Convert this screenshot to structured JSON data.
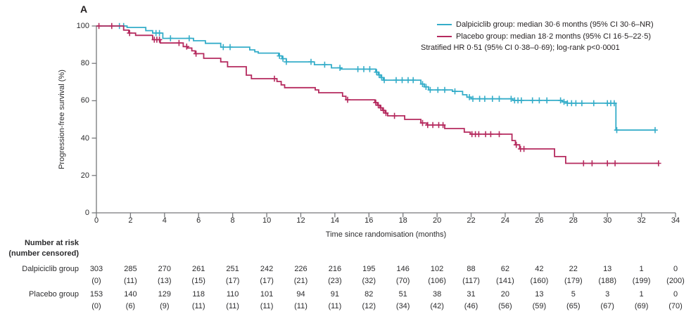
{
  "panel_label": "A",
  "colors": {
    "dalpiciclib": "#35adc9",
    "placebo": "#b52a5e",
    "axis": "#77787b",
    "text": "#2b2b2d"
  },
  "legend": {
    "items": [
      {
        "name": "dalpiciclib",
        "label": "Dalpiciclib group: median 30·6 months (95% CI 30·6–NR)"
      },
      {
        "name": "placebo",
        "label": "Placebo group: median 18·2 months (95% CI 16·5–22·5)"
      }
    ],
    "note": "Stratified HR 0·51 (95% CI 0·38–0·69); log-rank p<0·0001"
  },
  "chart_data": {
    "type": "line",
    "subtype": "kaplan-meier-step",
    "xlabel": "Time since randomisation (months)",
    "ylabel": "Progression-free survival (%)",
    "xlim": [
      0,
      34
    ],
    "ylim": [
      0,
      100
    ],
    "xticks": [
      0,
      2,
      4,
      6,
      8,
      10,
      12,
      14,
      16,
      18,
      20,
      22,
      24,
      26,
      28,
      30,
      32,
      34
    ],
    "yticks": [
      0,
      20,
      40,
      60,
      80,
      100
    ],
    "grid": false,
    "legend_position": "top-right",
    "series": [
      {
        "name": "Dalpiciclib group",
        "color": "#35adc9",
        "steps": [
          [
            0,
            100
          ],
          [
            1.8,
            99.2
          ],
          [
            2.9,
            97.5
          ],
          [
            3.3,
            96.2
          ],
          [
            3.9,
            93.4
          ],
          [
            5.7,
            92.1
          ],
          [
            6.4,
            90.7
          ],
          [
            7.3,
            88.7
          ],
          [
            9.0,
            87.2
          ],
          [
            9.3,
            86.2
          ],
          [
            9.5,
            85.5
          ],
          [
            10.7,
            84.0
          ],
          [
            10.9,
            82.5
          ],
          [
            11.15,
            80.8
          ],
          [
            12.8,
            79.3
          ],
          [
            13.8,
            77.6
          ],
          [
            14.35,
            76.9
          ],
          [
            16.4,
            75.3
          ],
          [
            16.55,
            73.8
          ],
          [
            16.7,
            72.4
          ],
          [
            16.85,
            71.0
          ],
          [
            19.05,
            68.9
          ],
          [
            19.25,
            67.4
          ],
          [
            19.5,
            65.8
          ],
          [
            20.9,
            65.0
          ],
          [
            21.5,
            63.2
          ],
          [
            21.75,
            61.9
          ],
          [
            22.0,
            61.0
          ],
          [
            24.45,
            60.2
          ],
          [
            27.35,
            59.4
          ],
          [
            27.65,
            58.7
          ],
          [
            30.5,
            44.3
          ]
        ],
        "end_time": 32.85,
        "censor_times": [
          1.35,
          1.6,
          3.5,
          3.7,
          4.35,
          5.45,
          7.45,
          7.85,
          10.75,
          10.95,
          11.15,
          12.6,
          13.4,
          14.3,
          15.35,
          15.7,
          16.05,
          16.45,
          16.6,
          16.75,
          16.9,
          17.6,
          17.95,
          18.3,
          18.6,
          19.15,
          19.35,
          19.6,
          20.05,
          20.45,
          21.05,
          21.9,
          22.1,
          22.5,
          22.8,
          23.25,
          23.65,
          24.35,
          24.55,
          24.75,
          24.95,
          25.6,
          26.0,
          26.45,
          27.25,
          27.45,
          27.65,
          27.9,
          28.15,
          28.5,
          29.2,
          30.0,
          30.2,
          30.4,
          30.55,
          32.8
        ]
      },
      {
        "name": "Placebo group",
        "color": "#b52a5e",
        "steps": [
          [
            0,
            100
          ],
          [
            1.6,
            97.8
          ],
          [
            1.9,
            96.2
          ],
          [
            2.3,
            95.0
          ],
          [
            3.3,
            92.7
          ],
          [
            3.75,
            90.9
          ],
          [
            5.1,
            89.0
          ],
          [
            5.35,
            88.2
          ],
          [
            5.6,
            86.7
          ],
          [
            5.8,
            85.2
          ],
          [
            6.3,
            82.7
          ],
          [
            7.3,
            80.8
          ],
          [
            7.7,
            78.2
          ],
          [
            8.8,
            73.7
          ],
          [
            9.1,
            71.8
          ],
          [
            10.6,
            70.3
          ],
          [
            10.85,
            68.5
          ],
          [
            11.05,
            67.0
          ],
          [
            12.85,
            65.8
          ],
          [
            13.05,
            64.3
          ],
          [
            14.45,
            62.4
          ],
          [
            14.65,
            60.5
          ],
          [
            16.35,
            59.0
          ],
          [
            16.5,
            57.6
          ],
          [
            16.65,
            56.2
          ],
          [
            16.8,
            54.8
          ],
          [
            16.95,
            53.4
          ],
          [
            17.1,
            51.9
          ],
          [
            18.1,
            50.0
          ],
          [
            19.05,
            48.1
          ],
          [
            19.4,
            47.0
          ],
          [
            20.45,
            45.1
          ],
          [
            21.6,
            43.2
          ],
          [
            21.95,
            42.1
          ],
          [
            24.4,
            38.7
          ],
          [
            24.6,
            36.4
          ],
          [
            24.85,
            34.2
          ],
          [
            26.9,
            30.1
          ],
          [
            27.55,
            26.5
          ]
        ],
        "end_time": 33.05,
        "censor_times": [
          0.15,
          0.9,
          1.95,
          3.4,
          3.55,
          3.7,
          4.85,
          5.3,
          5.85,
          10.45,
          14.75,
          16.4,
          16.55,
          16.7,
          16.85,
          17.0,
          17.5,
          19.15,
          19.45,
          19.75,
          20.1,
          20.35,
          22.05,
          22.25,
          22.45,
          22.85,
          23.15,
          23.65,
          24.65,
          24.9,
          25.1,
          28.6,
          29.1,
          30.0,
          30.45,
          33.0
        ]
      }
    ]
  },
  "risk_table": {
    "header_line1": "Number at risk",
    "header_line2": "(number censored)",
    "timepoints": [
      0,
      2,
      4,
      6,
      8,
      10,
      12,
      14,
      16,
      18,
      20,
      22,
      24,
      26,
      28,
      30,
      32,
      34
    ],
    "rows": [
      {
        "label": "Dalpiciclib group",
        "at_risk": [
          303,
          285,
          270,
          261,
          251,
          242,
          226,
          216,
          195,
          146,
          102,
          88,
          62,
          42,
          22,
          13,
          1,
          0
        ],
        "censored": [
          0,
          11,
          13,
          15,
          17,
          17,
          21,
          23,
          32,
          70,
          106,
          117,
          141,
          160,
          179,
          188,
          199,
          200
        ]
      },
      {
        "label": "Placebo group",
        "at_risk": [
          153,
          140,
          129,
          118,
          110,
          101,
          94,
          91,
          82,
          51,
          38,
          31,
          20,
          13,
          5,
          3,
          1,
          0
        ],
        "censored": [
          0,
          6,
          9,
          11,
          11,
          11,
          11,
          11,
          12,
          34,
          42,
          46,
          56,
          59,
          65,
          67,
          69,
          70
        ]
      }
    ]
  }
}
